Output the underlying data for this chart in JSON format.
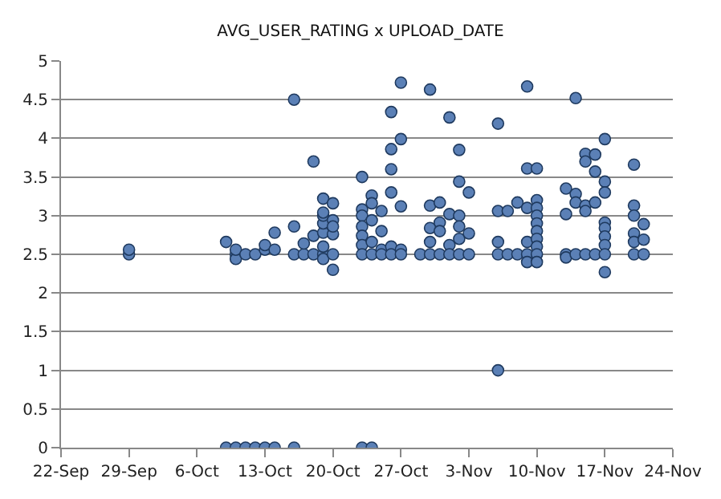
{
  "chart_data": {
    "type": "scatter",
    "title": "AVG_USER_RATING x UPLOAD_DATE",
    "series": [
      {
        "color": "#5b80b6",
        "x": [
          "--09-29",
          "--09-29",
          "--10-09",
          "--10-09",
          "--10-10",
          "--10-10",
          "--10-10",
          "--10-10",
          "--10-11",
          "--10-11",
          "--10-12",
          "--10-12",
          "--10-13",
          "--10-13",
          "--10-13",
          "--10-14",
          "--10-14",
          "--10-14",
          "--10-16",
          "--10-16",
          "--10-16",
          "--10-16",
          "--10-17",
          "--10-17",
          "--10-18",
          "--10-18",
          "--10-18",
          "--10-19",
          "--10-19",
          "--10-19",
          "--10-19",
          "--10-19",
          "--10-19",
          "--10-19",
          "--10-19",
          "--10-20",
          "--10-20",
          "--10-20",
          "--10-20",
          "--10-20",
          "--10-20",
          "--10-23",
          "--10-23",
          "--10-23",
          "--10-23",
          "--10-23",
          "--10-23",
          "--10-23",
          "--10-23",
          "--10-24",
          "--10-24",
          "--10-24",
          "--10-24",
          "--10-24",
          "--10-24",
          "--10-25",
          "--10-25",
          "--10-25",
          "--10-25",
          "--10-26",
          "--10-26",
          "--10-26",
          "--10-26",
          "--10-26",
          "--10-26",
          "--10-27",
          "--10-27",
          "--10-27",
          "--10-27",
          "--10-27",
          "--10-29",
          "--10-30",
          "--10-30",
          "--10-30",
          "--10-30",
          "--10-30",
          "--10-31",
          "--10-31",
          "--10-31",
          "--10-31",
          "--11-01",
          "--11-01",
          "--11-01",
          "--11-01",
          "--11-02",
          "--11-02",
          "--11-02",
          "--11-02",
          "--11-02",
          "--11-02",
          "--11-03",
          "--11-03",
          "--11-03",
          "--11-06",
          "--11-06",
          "--11-06",
          "--11-06",
          "--11-06",
          "--11-07",
          "--11-07",
          "--11-08",
          "--11-08",
          "--11-09",
          "--11-09",
          "--11-09",
          "--11-09",
          "--11-09",
          "--11-09",
          "--11-10",
          "--11-10",
          "--11-10",
          "--11-10",
          "--11-10",
          "--11-10",
          "--11-10",
          "--11-10",
          "--11-10",
          "--11-10",
          "--11-13",
          "--11-13",
          "--11-13",
          "--11-13",
          "--11-14",
          "--11-14",
          "--11-14",
          "--11-14",
          "--11-15",
          "--11-15",
          "--11-15",
          "--11-15",
          "--11-15",
          "--11-16",
          "--11-16",
          "--11-16",
          "--11-16",
          "--11-17",
          "--11-17",
          "--11-17",
          "--11-17",
          "--11-17",
          "--11-17",
          "--11-17",
          "--11-17",
          "--11-17",
          "--11-20",
          "--11-20",
          "--11-20",
          "--11-20",
          "--11-20",
          "--11-20",
          "--11-21",
          "--11-21",
          "--11-21"
        ],
        "values": [
          2.5,
          2.56,
          2.66,
          0,
          2.5,
          2.44,
          2.56,
          0,
          2.5,
          0,
          2.5,
          0,
          2.56,
          2.62,
          0,
          2.56,
          2.78,
          0,
          4.5,
          2.86,
          2.5,
          0,
          2.5,
          2.64,
          3.7,
          2.74,
          2.5,
          2.5,
          2.6,
          2.78,
          2.9,
          3.0,
          3.04,
          2.44,
          3.22,
          3.16,
          2.94,
          2.76,
          2.5,
          2.3,
          2.86,
          3.5,
          3.08,
          3.0,
          2.86,
          2.74,
          2.62,
          2.5,
          0,
          3.26,
          3.16,
          2.94,
          2.66,
          2.5,
          0,
          3.06,
          2.8,
          2.56,
          2.5,
          4.34,
          3.6,
          3.3,
          3.86,
          2.6,
          2.5,
          4.72,
          3.99,
          3.12,
          2.56,
          2.5,
          2.5,
          4.63,
          3.13,
          2.84,
          2.66,
          2.5,
          3.17,
          2.91,
          2.8,
          2.5,
          4.27,
          3.02,
          2.62,
          2.5,
          3.85,
          3.44,
          3.0,
          2.86,
          2.7,
          2.5,
          3.3,
          2.77,
          2.5,
          4.19,
          3.06,
          2.66,
          2.5,
          1.0,
          3.06,
          2.5,
          3.17,
          2.5,
          4.67,
          3.61,
          3.1,
          2.66,
          2.5,
          2.4,
          3.61,
          3.2,
          3.1,
          3.0,
          2.9,
          2.8,
          2.7,
          2.6,
          2.5,
          2.4,
          3.35,
          3.02,
          2.5,
          2.46,
          4.52,
          3.28,
          3.17,
          2.5,
          3.8,
          3.7,
          3.13,
          3.06,
          2.5,
          3.79,
          3.57,
          3.17,
          2.5,
          3.99,
          3.44,
          3.3,
          2.91,
          2.84,
          2.73,
          2.62,
          2.5,
          2.27,
          3.66,
          3.13,
          3.0,
          2.77,
          2.66,
          2.5,
          2.89,
          2.69,
          2.5
        ]
      }
    ],
    "xlim": [
      "--09-22",
      "--11-24"
    ],
    "xticks": [
      {
        "value": "--09-22",
        "label": "22-Sep"
      },
      {
        "value": "--09-29",
        "label": "29-Sep"
      },
      {
        "value": "--10-06",
        "label": "6-Oct"
      },
      {
        "value": "--10-13",
        "label": "13-Oct"
      },
      {
        "value": "--10-20",
        "label": "20-Oct"
      },
      {
        "value": "--10-27",
        "label": "27-Oct"
      },
      {
        "value": "--11-03",
        "label": "3-Nov"
      },
      {
        "value": "--11-10",
        "label": "10-Nov"
      },
      {
        "value": "--11-17",
        "label": "17-Nov"
      },
      {
        "value": "--11-24",
        "label": "24-Nov"
      }
    ],
    "ylim": [
      0,
      5
    ],
    "yticks": [
      0,
      0.5,
      1,
      1.5,
      2,
      2.5,
      3,
      3.5,
      4,
      4.5,
      5
    ],
    "grid": "y",
    "marker": "circle"
  }
}
